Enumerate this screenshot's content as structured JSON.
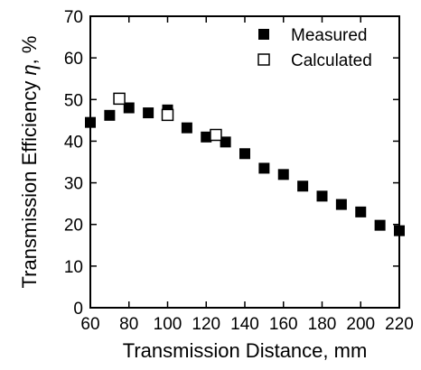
{
  "chart_data": {
    "type": "scatter",
    "xlabel": "Transmission Distance, mm",
    "ylabel_text": "Transmission Efficiency ",
    "ylabel_symbol": "η",
    "ylabel_unit": ", %",
    "xlim": [
      60,
      220
    ],
    "ylim": [
      0,
      70
    ],
    "xticks": [
      60,
      80,
      100,
      120,
      140,
      160,
      180,
      200,
      220
    ],
    "yticks": [
      0,
      10,
      20,
      30,
      40,
      50,
      60,
      70
    ],
    "grid": false,
    "legend_position": "top-right",
    "series": [
      {
        "name": "Measured",
        "marker": "filled-square",
        "color": "#000000",
        "points": [
          [
            60,
            44.5
          ],
          [
            70,
            46.2
          ],
          [
            80,
            48.0
          ],
          [
            90,
            46.8
          ],
          [
            100,
            47.5
          ],
          [
            110,
            43.2
          ],
          [
            120,
            41.0
          ],
          [
            130,
            39.8
          ],
          [
            140,
            37.0
          ],
          [
            150,
            33.5
          ],
          [
            160,
            32.0
          ],
          [
            170,
            29.2
          ],
          [
            180,
            26.8
          ],
          [
            190,
            24.8
          ],
          [
            200,
            23.0
          ],
          [
            210,
            19.8
          ],
          [
            220,
            18.5
          ]
        ]
      },
      {
        "name": "Calculated",
        "marker": "open-square",
        "color": "#000000",
        "points": [
          [
            75,
            50.2
          ],
          [
            100,
            46.3
          ],
          [
            125,
            41.5
          ]
        ]
      }
    ]
  }
}
